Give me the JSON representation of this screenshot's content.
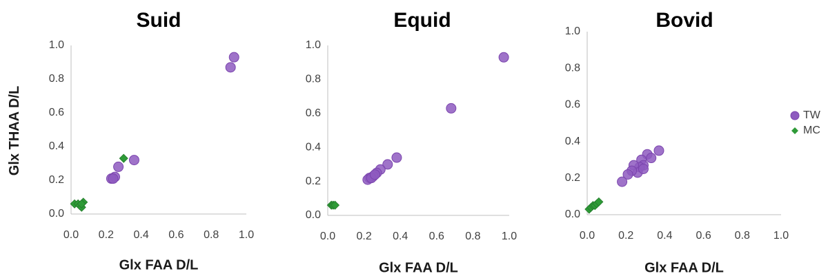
{
  "shared_ylabel": "Glx THAA D/L",
  "legend": [
    {
      "label": "TW",
      "color": "#8e5bbf",
      "marker": "circle"
    },
    {
      "label": "MC",
      "color": "#2e9a37",
      "marker": "diamond"
    }
  ],
  "chart_data": [
    {
      "type": "scatter",
      "title": "Suid",
      "xlabel": "Glx FAA D/L",
      "ylabel": "Glx THAA D/L",
      "xlim": [
        0,
        1.0
      ],
      "ylim": [
        0,
        1.0
      ],
      "xticks": [
        "0.0",
        "0.2",
        "0.4",
        "0.6",
        "0.8",
        "1.0"
      ],
      "yticks": [
        "0.0",
        "0.2",
        "0.4",
        "0.6",
        "0.8",
        "1.0"
      ],
      "series": [
        {
          "name": "TW",
          "points": [
            [
              0.93,
              0.93
            ],
            [
              0.91,
              0.87
            ],
            [
              0.36,
              0.32
            ],
            [
              0.27,
              0.28
            ],
            [
              0.25,
              0.22
            ],
            [
              0.23,
              0.21
            ],
            [
              0.24,
              0.21
            ]
          ]
        },
        {
          "name": "MC",
          "points": [
            [
              0.3,
              0.33
            ],
            [
              0.02,
              0.06
            ],
            [
              0.04,
              0.06
            ],
            [
              0.05,
              0.05
            ],
            [
              0.06,
              0.04
            ],
            [
              0.07,
              0.07
            ],
            [
              0.06,
              0.06
            ]
          ]
        }
      ]
    },
    {
      "type": "scatter",
      "title": "Equid",
      "xlabel": "Glx FAA D/L",
      "ylabel": "",
      "xlim": [
        0,
        1.0
      ],
      "ylim": [
        0,
        1.0
      ],
      "xticks": [
        "0.0",
        "0.2",
        "0.4",
        "0.6",
        "0.8",
        "1.0"
      ],
      "yticks": [
        "0.0",
        "0.2",
        "0.4",
        "0.6",
        "0.8",
        "1.0"
      ],
      "series": [
        {
          "name": "TW",
          "points": [
            [
              0.97,
              0.93
            ],
            [
              0.68,
              0.63
            ],
            [
              0.38,
              0.34
            ],
            [
              0.33,
              0.3
            ],
            [
              0.29,
              0.27
            ],
            [
              0.27,
              0.25
            ],
            [
              0.25,
              0.23
            ],
            [
              0.23,
              0.22
            ],
            [
              0.22,
              0.21
            ],
            [
              0.24,
              0.22
            ],
            [
              0.26,
              0.24
            ]
          ]
        },
        {
          "name": "MC",
          "points": [
            [
              0.02,
              0.06
            ],
            [
              0.03,
              0.06
            ],
            [
              0.04,
              0.06
            ]
          ]
        }
      ]
    },
    {
      "type": "scatter",
      "title": "Bovid",
      "xlabel": "Glx FAA D/L",
      "ylabel": "",
      "xlim": [
        0,
        1.0
      ],
      "ylim": [
        0,
        1.0
      ],
      "xticks": [
        "0.0",
        "0.2",
        "0.4",
        "0.6",
        "0.8",
        "1.0"
      ],
      "yticks": [
        "0.0",
        "0.2",
        "0.4",
        "0.6",
        "0.8",
        "1.0"
      ],
      "series": [
        {
          "name": "TW",
          "points": [
            [
              0.37,
              0.35
            ],
            [
              0.31,
              0.33
            ],
            [
              0.33,
              0.31
            ],
            [
              0.28,
              0.3
            ],
            [
              0.29,
              0.27
            ],
            [
              0.27,
              0.26
            ],
            [
              0.24,
              0.27
            ],
            [
              0.26,
              0.23
            ],
            [
              0.29,
              0.25
            ],
            [
              0.23,
              0.24
            ],
            [
              0.21,
              0.22
            ],
            [
              0.18,
              0.18
            ]
          ]
        },
        {
          "name": "MC",
          "points": [
            [
              0.01,
              0.03
            ],
            [
              0.02,
              0.04
            ],
            [
              0.03,
              0.05
            ],
            [
              0.04,
              0.05
            ],
            [
              0.05,
              0.06
            ],
            [
              0.06,
              0.07
            ]
          ]
        }
      ]
    }
  ]
}
